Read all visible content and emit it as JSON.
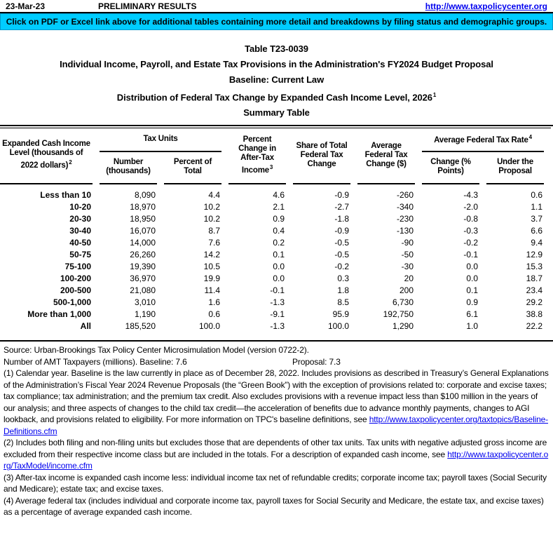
{
  "page": {
    "date": "23-Mar-23",
    "status": "PRELIMINARY RESULTS",
    "site_url": "http://www.taxpolicycenter.org",
    "banner": "Click on PDF or Excel link above for additional tables containing more detail and breakdowns by filing status and demographic groups."
  },
  "title": {
    "line1": "Table T23-0039",
    "line2": "Individual Income, Payroll, and Estate Tax Provisions in the Administration's FY2024 Budget Proposal",
    "line3": "Baseline: Current Law",
    "line4": "Distribution of Federal Tax Change by Expanded Cash Income Level, 2026",
    "line4_sup": "1",
    "line5": "Summary Table"
  },
  "table": {
    "headers": {
      "income_level": "Expanded Cash Income Level (thousands of 2022 dollars)",
      "income_level_sup": "2",
      "tax_units_group": "Tax Units",
      "number": "Number (thousands)",
      "percent_of_total": "Percent of Total",
      "pct_change_ati": "Percent Change in After-Tax Income",
      "pct_change_ati_sup": "3",
      "share_total": "Share of Total Federal Tax Change",
      "avg_change": "Average Federal Tax Change ($)",
      "avg_rate_group": "Average Federal Tax Rate",
      "avg_rate_group_sup": "4",
      "rate_change": "Change (% Points)",
      "rate_under": "Under the Proposal"
    },
    "rows": [
      [
        "Less than 10",
        "8,090",
        "4.4",
        "4.6",
        "-0.9",
        "-260",
        "-4.3",
        "0.6"
      ],
      [
        "10-20",
        "18,970",
        "10.2",
        "2.1",
        "-2.7",
        "-340",
        "-2.0",
        "1.1"
      ],
      [
        "20-30",
        "18,950",
        "10.2",
        "0.9",
        "-1.8",
        "-230",
        "-0.8",
        "3.7"
      ],
      [
        "30-40",
        "16,070",
        "8.7",
        "0.4",
        "-0.9",
        "-130",
        "-0.3",
        "6.6"
      ],
      [
        "40-50",
        "14,000",
        "7.6",
        "0.2",
        "-0.5",
        "-90",
        "-0.2",
        "9.4"
      ],
      [
        "50-75",
        "26,260",
        "14.2",
        "0.1",
        "-0.5",
        "-50",
        "-0.1",
        "12.9"
      ],
      [
        "75-100",
        "19,390",
        "10.5",
        "0.0",
        "-0.2",
        "-30",
        "0.0",
        "15.3"
      ],
      [
        "100-200",
        "36,970",
        "19.9",
        "0.0",
        "0.3",
        "20",
        "0.0",
        "18.7"
      ],
      [
        "200-500",
        "21,080",
        "11.4",
        "-0.1",
        "1.8",
        "200",
        "0.1",
        "23.4"
      ],
      [
        "500-1,000",
        "3,010",
        "1.6",
        "-1.3",
        "8.5",
        "6,730",
        "0.9",
        "29.2"
      ],
      [
        "More than 1,000",
        "1,190",
        "0.6",
        "-9.1",
        "95.9",
        "192,750",
        "6.1",
        "38.8"
      ],
      [
        "All",
        "185,520",
        "100.0",
        "-1.3",
        "100.0",
        "1,290",
        "1.0",
        "22.2"
      ]
    ]
  },
  "footer": {
    "source": "Source: Urban-Brookings Tax Policy Center Microsimulation Model (version 0722-2).",
    "amt_label": "Number of AMT Taxpayers (millions).  Baseline: 7.6",
    "amt_proposal": "Proposal: 7.3",
    "note1": "(1) Calendar year. Baseline is the law currently in place as of December 28, 2022. Includes provisions as described in Treasury’s General Explanations of the Administration’s Fiscal Year 2024 Revenue Proposals (the “Green Book”) with the exception of provisions related to: corporate and excise taxes; tax compliance; tax administration; and the premium tax credit. Also excludes provisions with a revenue impact less than $100 million in the years of our analysis; and three aspects of changes to the child tax credit—the acceleration of benefits due to advance monthly payments, changes to AGI lookback, and provisions related to eligibility. For more information on TPC's baseline definitions, see",
    "note1_link": "http://www.taxpolicycenter.org/taxtopics/Baseline-Definitions.cfm",
    "note2": "(2) Includes both filing and non-filing units but excludes those that are dependents of other tax units. Tax units with negative adjusted gross income are excluded from their respective income class but are included in the totals. For a description of expanded cash income, see",
    "note2_link": "http://www.taxpolicycenter.org/TaxModel/income.cfm",
    "note3": "(3) After-tax income is expanded cash income less: individual income tax net of refundable credits; corporate income tax; payroll taxes (Social Security and Medicare); estate tax; and excise taxes.",
    "note4": "(4) Average federal tax (includes individual and corporate income tax, payroll taxes for Social Security and Medicare, the estate tax, and excise taxes) as a percentage of average expanded cash income."
  }
}
